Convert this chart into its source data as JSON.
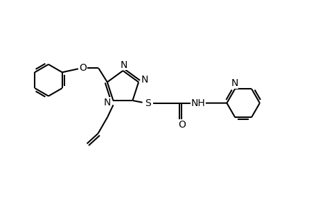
{
  "background_color": "#ffffff",
  "line_color": "#000000",
  "line_width": 1.5,
  "fig_width": 4.6,
  "fig_height": 3.0,
  "dpi": 100,
  "xlim": [
    0,
    10
  ],
  "ylim": [
    0,
    6.5
  ]
}
